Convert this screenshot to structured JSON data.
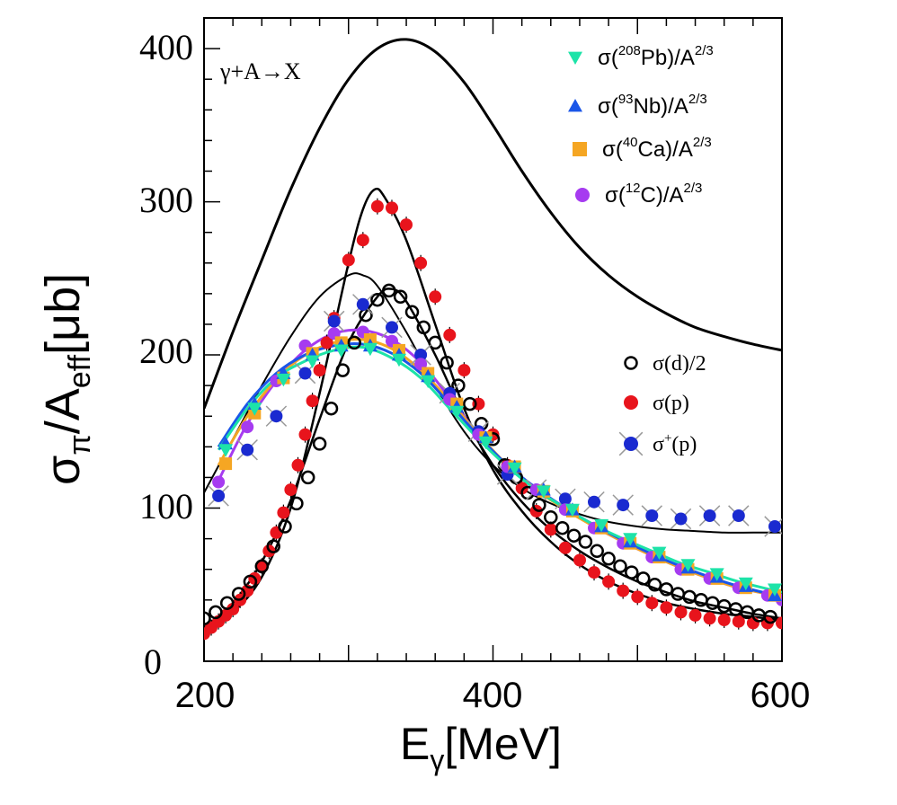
{
  "chart_data": {
    "type": "scatter",
    "title": "",
    "annotation": "γ+A→X",
    "xlabel": {
      "base": "E",
      "sub": "γ",
      "unit": "[MeV]"
    },
    "ylabel": {
      "base": "σ",
      "sub1": "π",
      "mid": "/A",
      "sub2": "eff",
      "unit": "[μb]"
    },
    "xlim": [
      200,
      600
    ],
    "ylim": [
      0,
      420
    ],
    "xticks": [
      200,
      400,
      600
    ],
    "yticks": [
      0,
      100,
      200,
      300,
      400
    ],
    "xtick_labels": [
      "200",
      "400",
      "600"
    ],
    "ytick_labels": [
      "0",
      "100",
      "200",
      "300",
      "400"
    ],
    "grid": false,
    "legend_placement": "top-right",
    "legend": [
      {
        "id": "pb",
        "marker": "triangle-down",
        "color": "#1de3a8",
        "label": "σ(208Pb)/A2/3",
        "pre": "σ(",
        "sup1": "208",
        "mid": "Pb)/A",
        "sup2": "2/3"
      },
      {
        "id": "nb",
        "marker": "triangle-up",
        "color": "#1a56e8",
        "label": "σ(93Nb)/A2/3",
        "pre": "σ(",
        "sup1": "93",
        "mid": "Nb)/A",
        "sup2": "2/3"
      },
      {
        "id": "ca",
        "marker": "square",
        "color": "#f5a623",
        "label": "σ(40Ca)/A2/3",
        "pre": "σ(",
        "sup1": "40",
        "mid": "Ca)/A",
        "sup2": "2/3"
      },
      {
        "id": "c",
        "marker": "circle",
        "color": "#a63bf0",
        "label": "σ(12C)/A2/3",
        "pre": "σ(",
        "sup1": "12",
        "mid": "C)/A",
        "sup2": "2/3"
      }
    ],
    "legend2": [
      {
        "id": "d",
        "marker": "open-circle",
        "color": "#000000",
        "label": "σ(d)/2"
      },
      {
        "id": "p",
        "marker": "circle",
        "color": "#e8141c",
        "label": "σ(p)"
      },
      {
        "id": "pp",
        "marker": "circle-x",
        "color": "#1a2ad0",
        "label": "σ+(p)",
        "pre": "σ",
        "sup": "+",
        "post": "(p)"
      }
    ],
    "lines": [
      {
        "name": "γ+A→X total",
        "color": "#000000",
        "width": 3,
        "x": [
          200,
          220,
          240,
          260,
          280,
          300,
          320,
          340,
          360,
          380,
          400,
          420,
          440,
          460,
          480,
          500,
          520,
          540,
          560,
          580,
          600
        ],
        "y": [
          165,
          215,
          262,
          308,
          348,
          380,
          400,
          406,
          398,
          378,
          350,
          320,
          293,
          270,
          252,
          238,
          227,
          218,
          212,
          207,
          203
        ]
      },
      {
        "name": "σ(p) fit",
        "color": "#000000",
        "width": 2.5,
        "x": [
          200,
          220,
          240,
          260,
          280,
          300,
          310,
          318,
          325,
          340,
          360,
          380,
          400,
          420,
          440,
          460,
          480,
          500,
          520,
          540,
          560,
          580,
          600
        ],
        "y": [
          20,
          32,
          55,
          100,
          175,
          260,
          295,
          308,
          303,
          275,
          220,
          165,
          125,
          98,
          78,
          63,
          52,
          44,
          38,
          34,
          31,
          29,
          27
        ]
      },
      {
        "name": "σ+(p) fit",
        "color": "#000000",
        "width": 2,
        "x": [
          200,
          220,
          240,
          260,
          280,
          300,
          310,
          320,
          340,
          360,
          380,
          400,
          420,
          440,
          460,
          480,
          500,
          520,
          540,
          560,
          580,
          600
        ],
        "y": [
          110,
          145,
          180,
          212,
          238,
          252,
          252,
          245,
          215,
          180,
          150,
          128,
          113,
          103,
          96,
          91,
          88,
          86,
          85,
          84,
          84,
          84
        ]
      },
      {
        "name": "σ(d)/2 fit",
        "color": "#000000",
        "width": 2.5,
        "x": [
          200,
          220,
          240,
          260,
          280,
          300,
          320,
          330,
          340,
          360,
          380,
          400,
          420,
          440,
          460,
          480,
          500,
          520,
          540,
          560,
          580,
          600
        ],
        "y": [
          22,
          38,
          65,
          105,
          158,
          208,
          238,
          243,
          235,
          200,
          160,
          128,
          104,
          86,
          72,
          61,
          52,
          45,
          39,
          35,
          31,
          28
        ]
      },
      {
        "name": "σ(12C) fit",
        "color": "#a63bf0",
        "width": 3,
        "x": [
          210,
          230,
          250,
          270,
          290,
          310,
          330,
          350,
          370,
          390,
          410,
          430,
          450,
          470,
          490,
          510,
          530,
          550,
          570,
          600
        ],
        "y": [
          118,
          155,
          183,
          203,
          214,
          216,
          210,
          195,
          172,
          148,
          128,
          113,
          100,
          88,
          78,
          69,
          61,
          54,
          48,
          42
        ]
      },
      {
        "name": "σ(40Ca) fit",
        "color": "#f5a623",
        "width": 3,
        "x": [
          210,
          230,
          250,
          270,
          290,
          310,
          330,
          350,
          370,
          390,
          410,
          430,
          450,
          470,
          490,
          510,
          530,
          550,
          570,
          600
        ],
        "y": [
          128,
          160,
          184,
          200,
          208,
          210,
          204,
          190,
          170,
          148,
          128,
          112,
          99,
          88,
          78,
          69,
          61,
          54,
          48,
          42
        ]
      },
      {
        "name": "σ(93Nb) fit",
        "color": "#1a56e8",
        "width": 3,
        "x": [
          210,
          230,
          250,
          270,
          290,
          310,
          330,
          350,
          370,
          390,
          410,
          430,
          450,
          470,
          490,
          510,
          530,
          550,
          570,
          600
        ],
        "y": [
          140,
          168,
          188,
          200,
          206,
          207,
          201,
          188,
          168,
          147,
          128,
          113,
          100,
          89,
          79,
          70,
          62,
          55,
          49,
          42
        ]
      },
      {
        "name": "σ(208Pb) fit",
        "color": "#1de3a8",
        "width": 3,
        "x": [
          210,
          230,
          250,
          270,
          290,
          310,
          330,
          350,
          370,
          390,
          410,
          430,
          450,
          470,
          490,
          510,
          530,
          550,
          570,
          600
        ],
        "y": [
          138,
          165,
          185,
          196,
          203,
          205,
          198,
          185,
          165,
          145,
          127,
          112,
          100,
          89,
          80,
          72,
          64,
          58,
          52,
          45
        ]
      }
    ],
    "series": [
      {
        "name": "σ(p)",
        "marker": "circle",
        "color": "#e8141c",
        "size": 7,
        "x": [
          200,
          205,
          210,
          215,
          220,
          225,
          230,
          235,
          240,
          245,
          250,
          255,
          260,
          265,
          270,
          275,
          280,
          285,
          290,
          300,
          310,
          320,
          330,
          340,
          350,
          360,
          370,
          380,
          390,
          400,
          410,
          420,
          430,
          440,
          450,
          460,
          470,
          480,
          490,
          500,
          510,
          520,
          530,
          540,
          550,
          560,
          570,
          580,
          590,
          600
        ],
        "y": [
          18,
          22,
          26,
          30,
          34,
          40,
          46,
          54,
          62,
          72,
          84,
          97,
          112,
          128,
          148,
          170,
          190,
          208,
          224,
          262,
          275,
          297,
          296,
          285,
          260,
          238,
          213,
          190,
          168,
          148,
          128,
          113,
          98,
          86,
          74,
          66,
          58,
          52,
          46,
          42,
          38,
          35,
          32,
          30,
          28,
          27,
          26,
          25,
          25,
          25
        ]
      },
      {
        "name": "σ(d)/2",
        "marker": "open-circle",
        "color": "#000000",
        "size": 8,
        "x": [
          200,
          208,
          216,
          224,
          232,
          240,
          248,
          256,
          264,
          272,
          280,
          288,
          296,
          304,
          312,
          320,
          328,
          336,
          344,
          352,
          360,
          368,
          376,
          384,
          392,
          400,
          408,
          416,
          424,
          432,
          440,
          448,
          456,
          464,
          472,
          480,
          488,
          496,
          504,
          512,
          520,
          528,
          536,
          544,
          552,
          560,
          568,
          576,
          584,
          592
        ],
        "y": [
          28,
          32,
          38,
          44,
          52,
          62,
          75,
          88,
          103,
          120,
          142,
          165,
          190,
          208,
          226,
          236,
          242,
          238,
          228,
          218,
          208,
          195,
          180,
          168,
          155,
          145,
          128,
          120,
          110,
          102,
          94,
          87,
          82,
          78,
          72,
          67,
          62,
          58,
          54,
          50,
          47,
          44,
          42,
          40,
          38,
          36,
          34,
          32,
          30,
          29
        ]
      },
      {
        "name": "σ+(p)",
        "marker": "circle-x",
        "color": "#1a2ad0",
        "size": 7,
        "x": [
          210,
          230,
          250,
          270,
          290,
          310,
          330,
          350,
          370,
          390,
          410,
          430,
          450,
          470,
          490,
          510,
          530,
          550,
          570,
          595
        ],
        "y": [
          108,
          138,
          160,
          188,
          222,
          233,
          218,
          200,
          175,
          150,
          122,
          112,
          106,
          104,
          102,
          95,
          93,
          95,
          95,
          88
        ]
      },
      {
        "name": "σ(12C)/A2/3",
        "marker": "circle",
        "color": "#a63bf0",
        "size": 7,
        "x": [
          210,
          230,
          250,
          270,
          290,
          310,
          330,
          350,
          370,
          390,
          410,
          430,
          450,
          470,
          490,
          510,
          530,
          550,
          570,
          590,
          600
        ],
        "y": [
          117,
          153,
          183,
          206,
          214,
          215,
          209,
          194,
          171,
          148,
          127,
          112,
          99,
          87,
          77,
          68,
          60,
          54,
          48,
          43,
          40
        ]
      },
      {
        "name": "σ(40Ca)/A2/3",
        "marker": "square",
        "color": "#f5a623",
        "size": 7,
        "x": [
          215,
          235,
          255,
          275,
          295,
          315,
          335,
          355,
          375,
          395,
          415,
          435,
          455,
          475,
          495,
          515,
          535,
          555,
          575,
          595
        ],
        "y": [
          129,
          162,
          185,
          201,
          208,
          210,
          203,
          188,
          168,
          146,
          127,
          111,
          98,
          87,
          77,
          68,
          60,
          54,
          48,
          43
        ]
      },
      {
        "name": "σ(93Nb)/A2/3",
        "marker": "triangle-up",
        "color": "#1a56e8",
        "size": 8,
        "x": [
          215,
          235,
          255,
          275,
          295,
          315,
          335,
          355,
          375,
          395,
          415,
          435,
          455,
          475,
          495,
          515,
          535,
          555,
          575,
          595
        ],
        "y": [
          142,
          168,
          188,
          200,
          206,
          206,
          200,
          186,
          166,
          146,
          127,
          112,
          99,
          88,
          78,
          69,
          61,
          55,
          49,
          43
        ]
      },
      {
        "name": "σ(208Pb)/A2/3",
        "marker": "triangle-down",
        "color": "#1de3a8",
        "size": 8,
        "x": [
          215,
          235,
          255,
          275,
          295,
          315,
          335,
          355,
          375,
          395,
          415,
          435,
          455,
          475,
          495,
          515,
          535,
          555,
          575,
          595
        ],
        "y": [
          138,
          165,
          184,
          196,
          203,
          204,
          197,
          183,
          163,
          143,
          126,
          111,
          99,
          89,
          80,
          71,
          63,
          57,
          51,
          47
        ]
      }
    ]
  }
}
